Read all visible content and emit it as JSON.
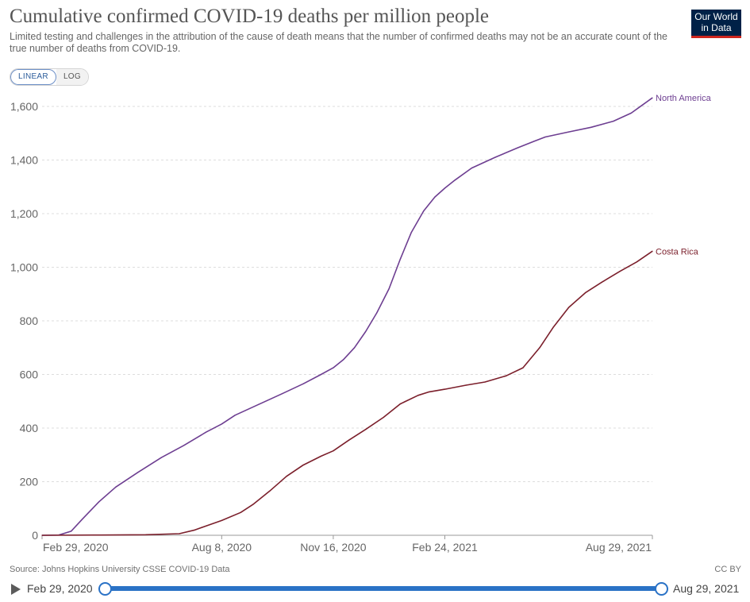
{
  "header": {
    "title": "Cumulative confirmed COVID-19 deaths per million people",
    "subtitle": "Limited testing and challenges in the attribution of the cause of death means that the number of confirmed deaths may not be an accurate count of the true number of deaths from COVID-19.",
    "logo_line1": "Our World",
    "logo_line2": "in Data"
  },
  "controls": {
    "linear_label": "LINEAR",
    "log_label": "LOG",
    "active_scale": "linear"
  },
  "footer": {
    "source": "Source: Johns Hopkins University CSSE COVID-19 Data",
    "license": "CC BY"
  },
  "timeline": {
    "start_label": "Feb 29, 2020",
    "end_label": "Aug 29, 2021",
    "icon": "play-icon"
  },
  "colors": {
    "north_america": "#6d3e91",
    "costa_rica": "#7b1f2b",
    "accent": "#2a72c6",
    "grid": "#dddddd"
  },
  "chart_data": {
    "type": "line",
    "title": "Cumulative confirmed COVID-19 deaths per million people",
    "xlabel": "",
    "ylabel": "",
    "grid": true,
    "legend": "inline-right",
    "xlim": [
      "2020-02-29",
      "2021-08-29"
    ],
    "ylim": [
      0,
      1600
    ],
    "y_ticks": [
      0,
      200,
      400,
      600,
      800,
      1000,
      1200,
      1400,
      1600
    ],
    "y_tick_labels": [
      "0",
      "200",
      "400",
      "600",
      "800",
      "1,000",
      "1,200",
      "1,400",
      "1,600"
    ],
    "x_ticks": [
      "2020-02-29",
      "2020-08-08",
      "2020-11-16",
      "2021-02-24",
      "2021-08-29"
    ],
    "x_tick_labels": [
      "Feb 29, 2020",
      "Aug 8, 2020",
      "Nov 16, 2020",
      "Feb 24, 2021",
      "Aug 29, 2021"
    ],
    "series": [
      {
        "name": "North America",
        "color": "#6d3e91",
        "points": [
          [
            "2020-02-29",
            0
          ],
          [
            "2020-03-15",
            1
          ],
          [
            "2020-03-26",
            15
          ],
          [
            "2020-04-05",
            60
          ],
          [
            "2020-04-20",
            125
          ],
          [
            "2020-05-05",
            180
          ],
          [
            "2020-05-25",
            235
          ],
          [
            "2020-06-15",
            290
          ],
          [
            "2020-07-05",
            335
          ],
          [
            "2020-07-25",
            385
          ],
          [
            "2020-08-08",
            415
          ],
          [
            "2020-08-20",
            448
          ],
          [
            "2020-09-10",
            488
          ],
          [
            "2020-10-01",
            528
          ],
          [
            "2020-10-20",
            565
          ],
          [
            "2020-11-05",
            600
          ],
          [
            "2020-11-16",
            625
          ],
          [
            "2020-11-25",
            655
          ],
          [
            "2020-12-05",
            700
          ],
          [
            "2020-12-15",
            760
          ],
          [
            "2020-12-25",
            830
          ],
          [
            "2021-01-05",
            920
          ],
          [
            "2021-01-15",
            1030
          ],
          [
            "2021-01-25",
            1130
          ],
          [
            "2021-02-05",
            1210
          ],
          [
            "2021-02-15",
            1262
          ],
          [
            "2021-02-24",
            1295
          ],
          [
            "2021-03-05",
            1325
          ],
          [
            "2021-03-20",
            1370
          ],
          [
            "2021-04-10",
            1410
          ],
          [
            "2021-04-30",
            1445
          ],
          [
            "2021-05-15",
            1470
          ],
          [
            "2021-05-25",
            1486
          ],
          [
            "2021-06-15",
            1505
          ],
          [
            "2021-07-05",
            1522
          ],
          [
            "2021-07-25",
            1545
          ],
          [
            "2021-08-10",
            1575
          ],
          [
            "2021-08-20",
            1605
          ],
          [
            "2021-08-29",
            1632
          ]
        ]
      },
      {
        "name": "Costa Rica",
        "color": "#7b1f2b",
        "points": [
          [
            "2020-02-29",
            0
          ],
          [
            "2020-04-15",
            1
          ],
          [
            "2020-06-01",
            2
          ],
          [
            "2020-07-01",
            6
          ],
          [
            "2020-07-15",
            20
          ],
          [
            "2020-07-25",
            35
          ],
          [
            "2020-08-08",
            55
          ],
          [
            "2020-08-25",
            85
          ],
          [
            "2020-09-05",
            115
          ],
          [
            "2020-09-20",
            165
          ],
          [
            "2020-10-05",
            220
          ],
          [
            "2020-10-20",
            262
          ],
          [
            "2020-11-05",
            295
          ],
          [
            "2020-11-16",
            315
          ],
          [
            "2020-11-30",
            355
          ],
          [
            "2020-12-15",
            395
          ],
          [
            "2020-12-31",
            440
          ],
          [
            "2021-01-15",
            490
          ],
          [
            "2021-01-31",
            522
          ],
          [
            "2021-02-10",
            535
          ],
          [
            "2021-02-24",
            545
          ],
          [
            "2021-03-15",
            560
          ],
          [
            "2021-04-01",
            572
          ],
          [
            "2021-04-20",
            595
          ],
          [
            "2021-05-05",
            625
          ],
          [
            "2021-05-20",
            700
          ],
          [
            "2021-06-01",
            775
          ],
          [
            "2021-06-15",
            850
          ],
          [
            "2021-06-30",
            905
          ],
          [
            "2021-07-15",
            945
          ],
          [
            "2021-07-31",
            985
          ],
          [
            "2021-08-15",
            1020
          ],
          [
            "2021-08-29",
            1060
          ]
        ]
      }
    ]
  }
}
